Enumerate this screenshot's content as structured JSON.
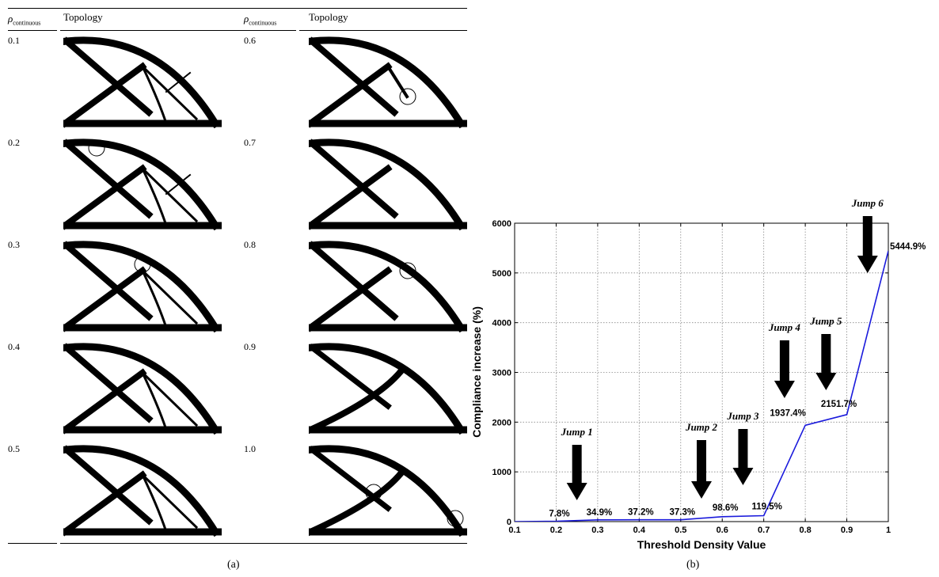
{
  "panel_a": {
    "header": {
      "rho_symbol": "ρ",
      "rho_subscript": "continuous",
      "topology_label": "Topology"
    },
    "left_column_values": [
      "0.1",
      "0.2",
      "0.3",
      "0.4",
      "0.5"
    ],
    "right_column_values": [
      "0.6",
      "0.7",
      "0.8",
      "0.9",
      "1.0"
    ],
    "caption": "(a)"
  },
  "panel_b": {
    "caption": "(b)"
  },
  "chart_data": {
    "type": "line",
    "xlabel": "Threshold Density Value",
    "ylabel": "Compliance increase (%)",
    "xlim": [
      0.1,
      1
    ],
    "ylim": [
      0,
      6000
    ],
    "xticks": [
      "0.1",
      "0.2",
      "0.3",
      "0.4",
      "0.5",
      "0.6",
      "0.7",
      "0.8",
      "0.9",
      "1"
    ],
    "yticks": [
      "0",
      "1000",
      "2000",
      "3000",
      "4000",
      "5000",
      "6000"
    ],
    "grid": true,
    "series": [
      {
        "color": "#1a1adc",
        "x": [
          0.1,
          0.2,
          0.3,
          0.4,
          0.5,
          0.6,
          0.7,
          0.8,
          0.9,
          1.0
        ],
        "y": [
          0,
          7.8,
          34.9,
          37.2,
          37.3,
          98.6,
          119.5,
          1937.4,
          2151.7,
          5444.9
        ]
      }
    ],
    "data_labels": [
      "7.8%",
      "34.9%",
      "37.2%",
      "37.3%",
      "98.6%",
      "119.5%",
      "1937.4%",
      "2151.7%",
      "5444.9%"
    ],
    "annotations": [
      {
        "text": "Jump 1",
        "x": 0.25
      },
      {
        "text": "Jump 2",
        "x": 0.55
      },
      {
        "text": "Jump 3",
        "x": 0.65
      },
      {
        "text": "Jump 4",
        "x": 0.75
      },
      {
        "text": "Jump 5",
        "x": 0.85
      },
      {
        "text": "Jump 6",
        "x": 0.95
      }
    ]
  }
}
